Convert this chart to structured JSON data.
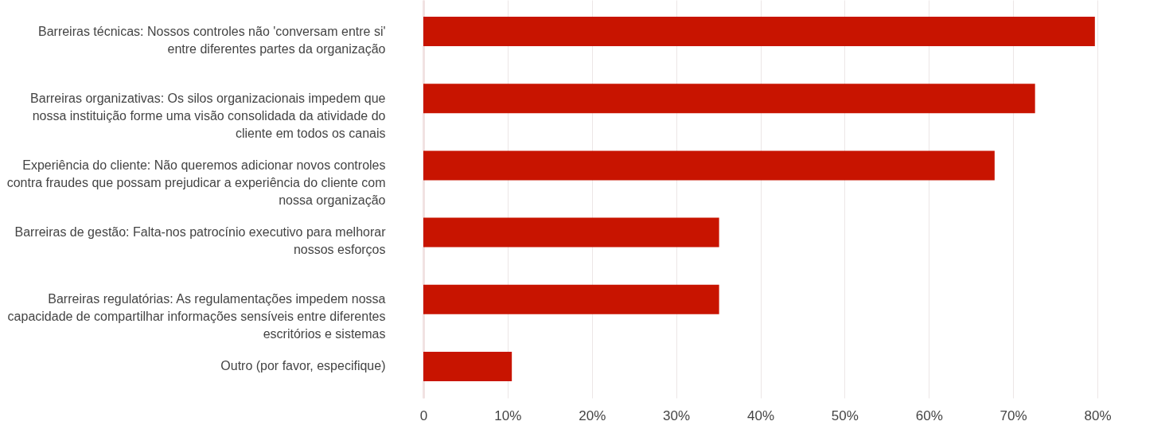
{
  "chart_data": {
    "type": "bar",
    "orientation": "horizontal",
    "categories": [
      "Barreiras técnicas: Nossos controles não 'conversam entre si' entre diferentes partes da organização",
      "Barreiras organizativas: Os silos organizacionais impedem que nossa instituição forme uma visão consolidada da atividade do cliente em todos os canais",
      "Experiência do cliente: Não queremos adicionar novos controles contra fraudes que possam prejudicar a experiência do cliente com nossa organização",
      "Barreiras de gestão: Falta-nos patrocínio executivo para melhorar nossos esforços",
      "Barreiras regulatórias: As regulamentações impedem nossa capacidade de compartilhar informações sensíveis entre diferentes escritórios e sistemas",
      "Outro (por favor, especifique)"
    ],
    "values": [
      79.7,
      72.6,
      67.8,
      35.1,
      35.1,
      10.5
    ],
    "color": "#c81400",
    "xlim": [
      0,
      80
    ],
    "xticks": [
      0,
      {
        "value": 10,
        "label": "10%"
      },
      {
        "value": 20,
        "label": "20%"
      },
      {
        "value": 30,
        "label": "30%"
      },
      {
        "value": 40,
        "label": "40%"
      },
      {
        "value": 50,
        "label": "50%"
      },
      {
        "value": 60,
        "label": "60%"
      },
      {
        "value": 70,
        "label": "70%"
      },
      {
        "value": 80,
        "label": "80%"
      }
    ],
    "grid": "x"
  }
}
